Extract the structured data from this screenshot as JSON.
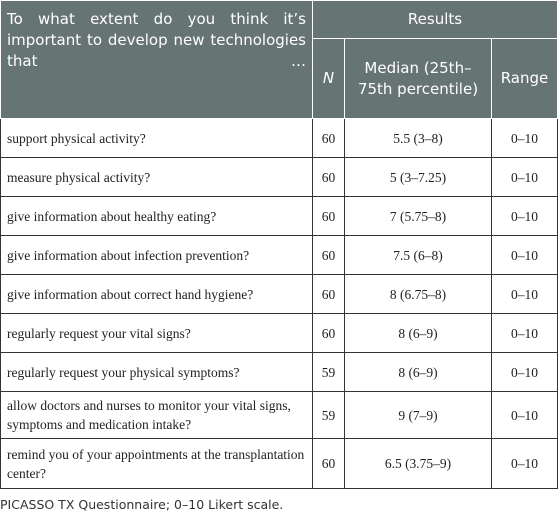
{
  "table": {
    "header": {
      "question": "To what extent do you think it’s important to develop new technologies that …",
      "results": "Results",
      "n": "N",
      "median": "Median (25th–75th percentile)",
      "range": "Range"
    },
    "rows": [
      [
        "support physical activity?",
        "60",
        "5.5 (3–8)",
        "0–10"
      ],
      [
        "measure physical activity?",
        "60",
        "5 (3–7.25)",
        "0–10"
      ],
      [
        "give information about healthy eating?",
        "60",
        "7 (5.75–8)",
        "0–10"
      ],
      [
        "give information about infection prevention?",
        "60",
        "7.5 (6–8)",
        "0–10"
      ],
      [
        "give information about correct hand hygiene?",
        "60",
        "8 (6.75–8)",
        "0–10"
      ],
      [
        "regularly request your vital signs?",
        "60",
        "8 (6–9)",
        "0–10"
      ],
      [
        "regularly request your physical symptoms?",
        "59",
        "8 (6–9)",
        "0–10"
      ],
      [
        "allow doctors and nurses to monitor your vital signs, symptoms and medication intake?",
        "59",
        "9 (7–9)",
        "0–10"
      ],
      [
        "remind you of your appointments at the transplantation center?",
        "60",
        "6.5 (3.75–9)",
        "0–10"
      ]
    ]
  },
  "footnote": "PICASSO TX Questionnaire; 0–10 Likert scale."
}
